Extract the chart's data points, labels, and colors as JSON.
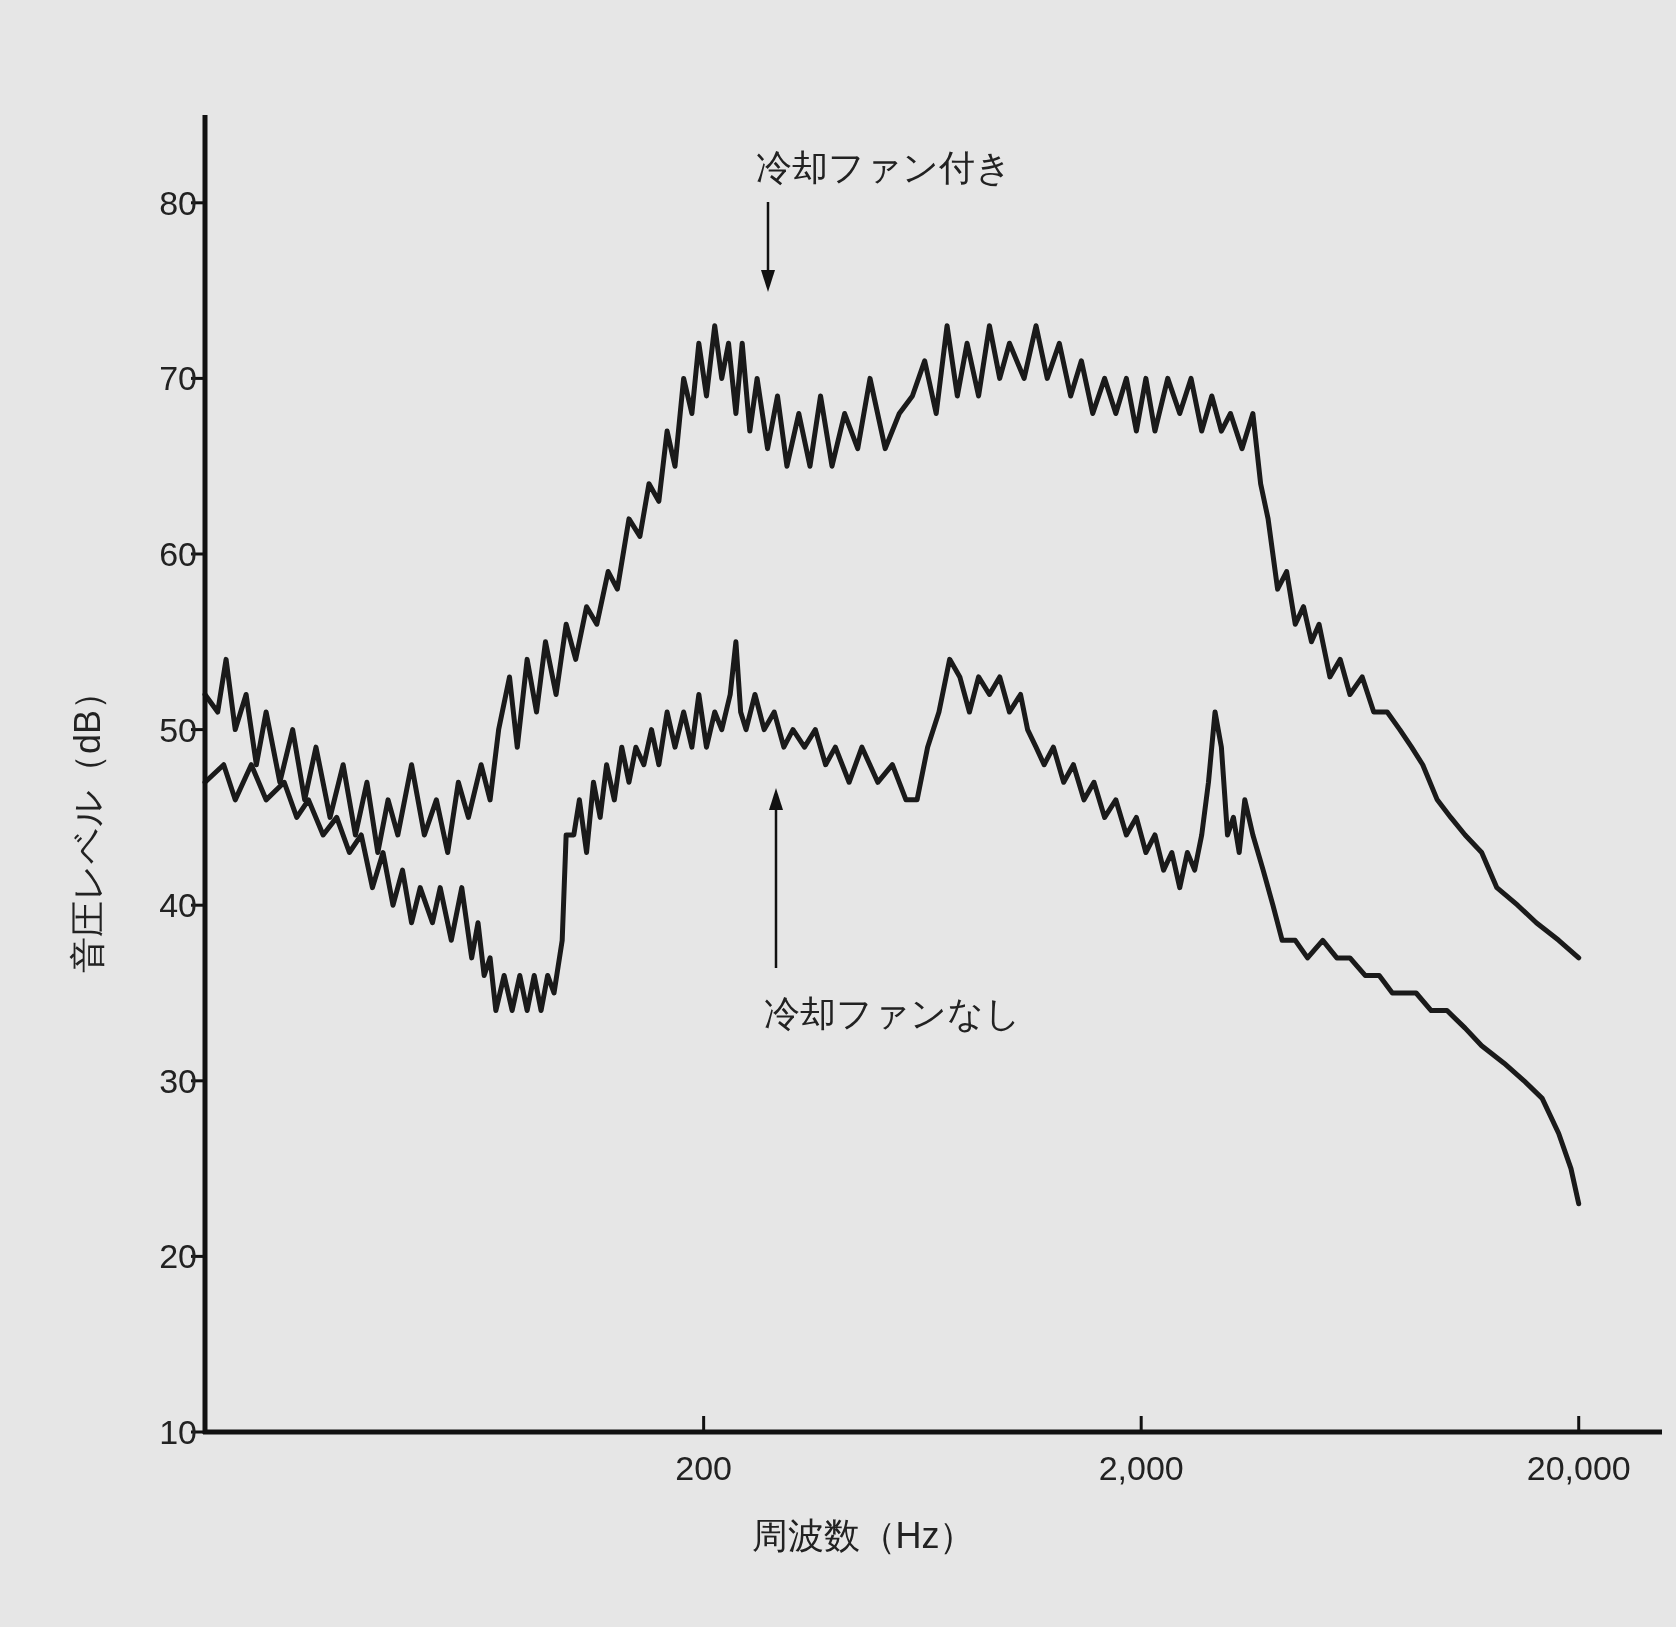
{
  "chart_data": {
    "type": "line",
    "xlabel": "周波数（Hz）",
    "ylabel": "音圧レベル（dB）",
    "log": "x",
    "xlim": [
      14.5,
      31000
    ],
    "ylim": [
      10,
      85
    ],
    "xticks": [
      200,
      {
        "value": 2000,
        "label": "2,000"
      },
      {
        "value": 20000,
        "label": "20,000"
      }
    ],
    "yticks": [
      10,
      20,
      30,
      40,
      50,
      60,
      70,
      80
    ],
    "series": [
      {
        "color": "#1a1a1a",
        "x": [
          14.5,
          15.5,
          16.2,
          17,
          18,
          19,
          20,
          21.5,
          23,
          24.5,
          26,
          28,
          30,
          32,
          34,
          36,
          38,
          40,
          43,
          46,
          49,
          52,
          55,
          58,
          62,
          65,
          68,
          72,
          75,
          79,
          83,
          87,
          92,
          97,
          102,
          108,
          114,
          121,
          127,
          135,
          143,
          150,
          158,
          165,
          172,
          180,
          188,
          195,
          203,
          212,
          220,
          228,
          237,
          245,
          255,
          265,
          280,
          295,
          310,
          330,
          350,
          370,
          393,
          420,
          450,
          480,
          520,
          560,
          600,
          640,
          680,
          720,
          760,
          800,
          850,
          900,
          950,
          1000,
          1080,
          1150,
          1220,
          1300,
          1380,
          1460,
          1550,
          1650,
          1750,
          1850,
          1950,
          2050,
          2150,
          2300,
          2450,
          2600,
          2750,
          2900,
          3050,
          3200,
          3400,
          3600,
          3750,
          3900,
          4100,
          4300,
          4500,
          4700,
          4900,
          5100,
          5400,
          5700,
          6000,
          6400,
          6800,
          7300,
          7800,
          8300,
          8800,
          9500,
          10200,
          11000,
          12000,
          13000,
          14500,
          16000,
          18000,
          20000
        ],
        "values": [
          52,
          51,
          54,
          50,
          52,
          48,
          51,
          47,
          50,
          46,
          49,
          45,
          48,
          44,
          47,
          43,
          46,
          44,
          48,
          44,
          46,
          43,
          47,
          45,
          48,
          46,
          50,
          53,
          49,
          54,
          51,
          55,
          52,
          56,
          54,
          57,
          56,
          59,
          58,
          62,
          61,
          64,
          63,
          67,
          65,
          70,
          68,
          72,
          69,
          73,
          70,
          72,
          68,
          72,
          67,
          70,
          66,
          69,
          65,
          68,
          65,
          69,
          65,
          68,
          66,
          70,
          66,
          68,
          69,
          71,
          68,
          73,
          69,
          72,
          69,
          73,
          70,
          72,
          70,
          73,
          70,
          72,
          69,
          71,
          68,
          70,
          68,
          70,
          67,
          70,
          67,
          70,
          68,
          70,
          67,
          69,
          67,
          68,
          66,
          68,
          64,
          62,
          58,
          59,
          56,
          57,
          55,
          56,
          53,
          54,
          52,
          53,
          51,
          51,
          50,
          49,
          48,
          46,
          45,
          44,
          43,
          41,
          40,
          39,
          38,
          37
        ]
      },
      {
        "color": "#1a1a1a",
        "x": [
          14.5,
          16,
          17,
          18.5,
          20,
          22,
          23.5,
          25,
          27,
          29,
          31,
          33,
          35,
          37,
          39,
          41,
          43,
          45,
          48,
          50,
          53,
          56,
          59,
          61,
          63,
          65,
          67,
          70,
          73,
          76,
          79,
          82,
          85,
          88,
          91,
          95,
          97,
          101,
          104,
          108,
          112,
          116,
          120,
          125,
          130,
          135,
          140,
          146,
          152,
          158,
          165,
          172,
          180,
          188,
          195,
          203,
          212,
          220,
          230,
          237,
          243,
          250,
          262,
          275,
          290,
          305,
          320,
          340,
          360,
          380,
          400,
          430,
          460,
          500,
          540,
          580,
          615,
          650,
          690,
          730,
          770,
          810,
          850,
          900,
          950,
          1000,
          1060,
          1100,
          1150,
          1200,
          1260,
          1330,
          1400,
          1480,
          1560,
          1650,
          1750,
          1850,
          1950,
          2050,
          2150,
          2250,
          2350,
          2450,
          2550,
          2650,
          2750,
          2850,
          2950,
          3050,
          3150,
          3250,
          3350,
          3450,
          3600,
          3800,
          4000,
          4200,
          4500,
          4800,
          5200,
          5600,
          6000,
          6500,
          7000,
          7500,
          8000,
          8500,
          9200,
          10000,
          11000,
          12000,
          13500,
          15000,
          16500,
          18000,
          19200,
          20000
        ],
        "values": [
          47,
          48,
          46,
          48,
          46,
          47,
          45,
          46,
          44,
          45,
          43,
          44,
          41,
          43,
          40,
          42,
          39,
          41,
          39,
          41,
          38,
          41,
          37,
          39,
          36,
          37,
          34,
          36,
          34,
          36,
          34,
          36,
          34,
          36,
          35,
          38,
          44,
          44,
          46,
          43,
          47,
          45,
          48,
          46,
          49,
          47,
          49,
          48,
          50,
          48,
          51,
          49,
          51,
          49,
          52,
          49,
          51,
          50,
          52,
          55,
          51,
          50,
          52,
          50,
          51,
          49,
          50,
          49,
          50,
          48,
          49,
          47,
          49,
          47,
          48,
          46,
          46,
          49,
          51,
          54,
          53,
          51,
          53,
          52,
          53,
          51,
          52,
          50,
          49,
          48,
          49,
          47,
          48,
          46,
          47,
          45,
          46,
          44,
          45,
          43,
          44,
          42,
          43,
          41,
          43,
          42,
          44,
          47,
          51,
          49,
          44,
          45,
          43,
          46,
          44,
          42,
          40,
          38,
          38,
          37,
          38,
          37,
          37,
          36,
          36,
          35,
          35,
          35,
          34,
          34,
          33,
          32,
          31,
          30,
          29,
          27,
          25,
          23
        ]
      }
    ],
    "annotations": [
      "冷却ファン付き",
      "冷却ファンなし"
    ]
  }
}
